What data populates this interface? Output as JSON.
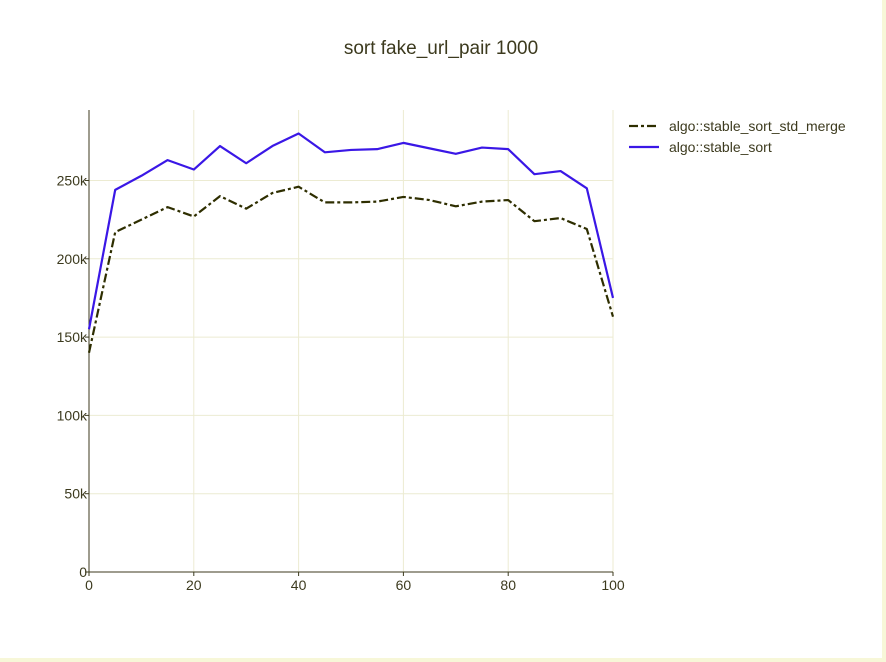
{
  "chart_data": {
    "type": "line",
    "title": "sort fake_url_pair 1000",
    "xlabel": "",
    "ylabel": "",
    "xlim": [
      0,
      100
    ],
    "ylim": [
      0,
      295000
    ],
    "xticks": [
      0,
      20,
      40,
      60,
      80,
      100
    ],
    "xtick_labels": [
      "0",
      "20",
      "40",
      "60",
      "80",
      "100"
    ],
    "yticks": [
      0,
      50000,
      100000,
      150000,
      200000,
      250000
    ],
    "ytick_labels": [
      "0",
      "50k",
      "100k",
      "150k",
      "200k",
      "250k"
    ],
    "grid": true,
    "legend_position": "top-right",
    "x": [
      0,
      5,
      10,
      15,
      20,
      25,
      30,
      35,
      40,
      45,
      50,
      55,
      60,
      65,
      70,
      75,
      80,
      85,
      90,
      95,
      100
    ],
    "series": [
      {
        "name": "algo::stable_sort_std_merge",
        "color": "#2e2e00",
        "dash": "dashdot",
        "values": [
          140000,
          217000,
          225000,
          233000,
          227000,
          240000,
          232000,
          242000,
          246000,
          236000,
          236000,
          236500,
          239500,
          237500,
          233500,
          236500,
          237500,
          224000,
          226000,
          219000,
          163000
        ]
      },
      {
        "name": "algo::stable_sort",
        "color": "#3a17e6",
        "dash": "solid",
        "values": [
          155000,
          244000,
          253000,
          263000,
          257000,
          272000,
          261000,
          272000,
          280000,
          268000,
          269500,
          270000,
          274000,
          270500,
          267000,
          271000,
          270000,
          254000,
          256000,
          245000,
          175000
        ]
      }
    ]
  }
}
